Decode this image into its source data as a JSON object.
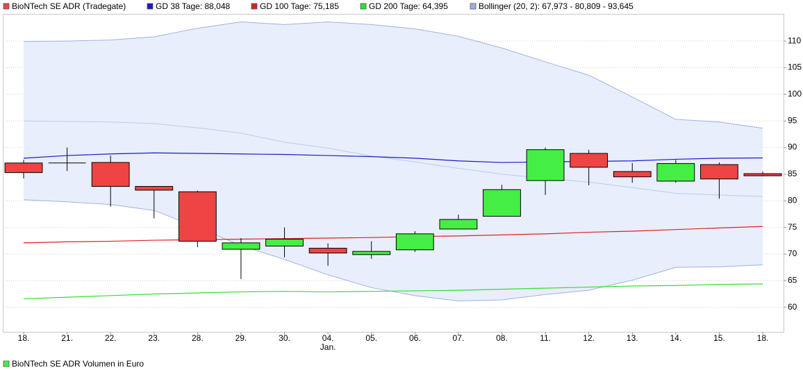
{
  "chart_data": {
    "type": "candlestick",
    "title": "BioNTech SE ADR (Tradegate)",
    "footer": "BioNTech SE ADR Volumen in Euro",
    "footer_color": "#44ee44",
    "categories": [
      "18.",
      "21.",
      "22.",
      "23.",
      "28.",
      "29.",
      "30.",
      "04.",
      "05.",
      "06.",
      "07.",
      "08.",
      "11.",
      "12.",
      "13.",
      "14.",
      "15.",
      "18."
    ],
    "month_labels": [
      null,
      null,
      null,
      null,
      null,
      null,
      null,
      "Jan.",
      null,
      null,
      null,
      null,
      null,
      null,
      null,
      null,
      null,
      null
    ],
    "open": [
      87.1,
      87.1,
      87.2,
      82.7,
      81.7,
      70.9,
      71.5,
      71.1,
      69.9,
      70.8,
      74.7,
      77.1,
      83.8,
      88.9,
      85.5,
      83.7,
      86.8,
      85.1
    ],
    "high": [
      87.7,
      90.0,
      88.5,
      82.7,
      81.9,
      73.0,
      75.0,
      72.0,
      72.4,
      74.3,
      77.4,
      83.0,
      90.0,
      89.6,
      87.1,
      87.7,
      87.2,
      85.5
    ],
    "low": [
      84.2,
      85.6,
      78.9,
      76.7,
      71.3,
      65.3,
      69.4,
      67.8,
      69.1,
      70.4,
      74.7,
      77.1,
      81.1,
      82.9,
      83.4,
      83.4,
      80.4,
      84.6
    ],
    "close": [
      85.3,
      87.1,
      82.7,
      82.0,
      72.4,
      72.1,
      72.8,
      70.2,
      70.5,
      73.8,
      76.5,
      82.1,
      89.6,
      86.3,
      84.5,
      87.0,
      84.1,
      84.7
    ],
    "up_color": "#44ee44",
    "down_color": "#ee4444",
    "series": [
      {
        "name": "GD 38 Tage: 88,048",
        "color": "#1a1acc",
        "values": [
          88.0,
          88.5,
          88.8,
          89.0,
          88.9,
          88.8,
          88.7,
          88.5,
          88.3,
          88.0,
          87.5,
          87.2,
          87.3,
          87.4,
          87.5,
          87.8,
          88.0,
          88.048
        ]
      },
      {
        "name": "GD 100 Tage: 75,185",
        "color": "#dd2222",
        "values": [
          72.1,
          72.3,
          72.4,
          72.6,
          72.7,
          72.8,
          72.9,
          73.0,
          73.1,
          73.3,
          73.4,
          73.6,
          73.8,
          74.1,
          74.3,
          74.6,
          74.9,
          75.185
        ]
      },
      {
        "name": "GD 200 Tage: 64,395",
        "color": "#33dd33",
        "values": [
          61.6,
          61.9,
          62.2,
          62.5,
          62.7,
          62.9,
          63.0,
          62.9,
          63.0,
          63.1,
          63.2,
          63.4,
          63.6,
          63.8,
          64.0,
          64.1,
          64.3,
          64.395
        ]
      }
    ],
    "bollinger": {
      "name": "Bollinger (20, 2): 67,973 - 80,809 - 93,645",
      "color": "#9db3e0",
      "fill": "#e8eefc",
      "upper": [
        109.9,
        110.0,
        110.2,
        110.8,
        112.4,
        113.6,
        113.1,
        113.6,
        113.1,
        112.3,
        110.9,
        108.7,
        106.1,
        103.6,
        99.5,
        95.3,
        94.8,
        93.645
      ],
      "middle": [
        95.0,
        94.9,
        94.8,
        94.5,
        93.7,
        92.7,
        91.0,
        89.9,
        88.4,
        87.3,
        86.1,
        85.0,
        84.2,
        83.5,
        82.5,
        81.4,
        81.1,
        80.809
      ],
      "lower": [
        80.2,
        79.8,
        79.3,
        78.2,
        75.0,
        71.6,
        69.0,
        66.1,
        63.7,
        62.2,
        61.2,
        61.4,
        62.4,
        63.2,
        65.1,
        67.5,
        67.6,
        67.973
      ]
    },
    "ylim": [
      55.4,
      115.1
    ],
    "yticks": [
      60,
      65,
      70,
      75,
      80,
      85,
      90,
      95,
      100,
      105,
      110
    ],
    "grid": true
  }
}
